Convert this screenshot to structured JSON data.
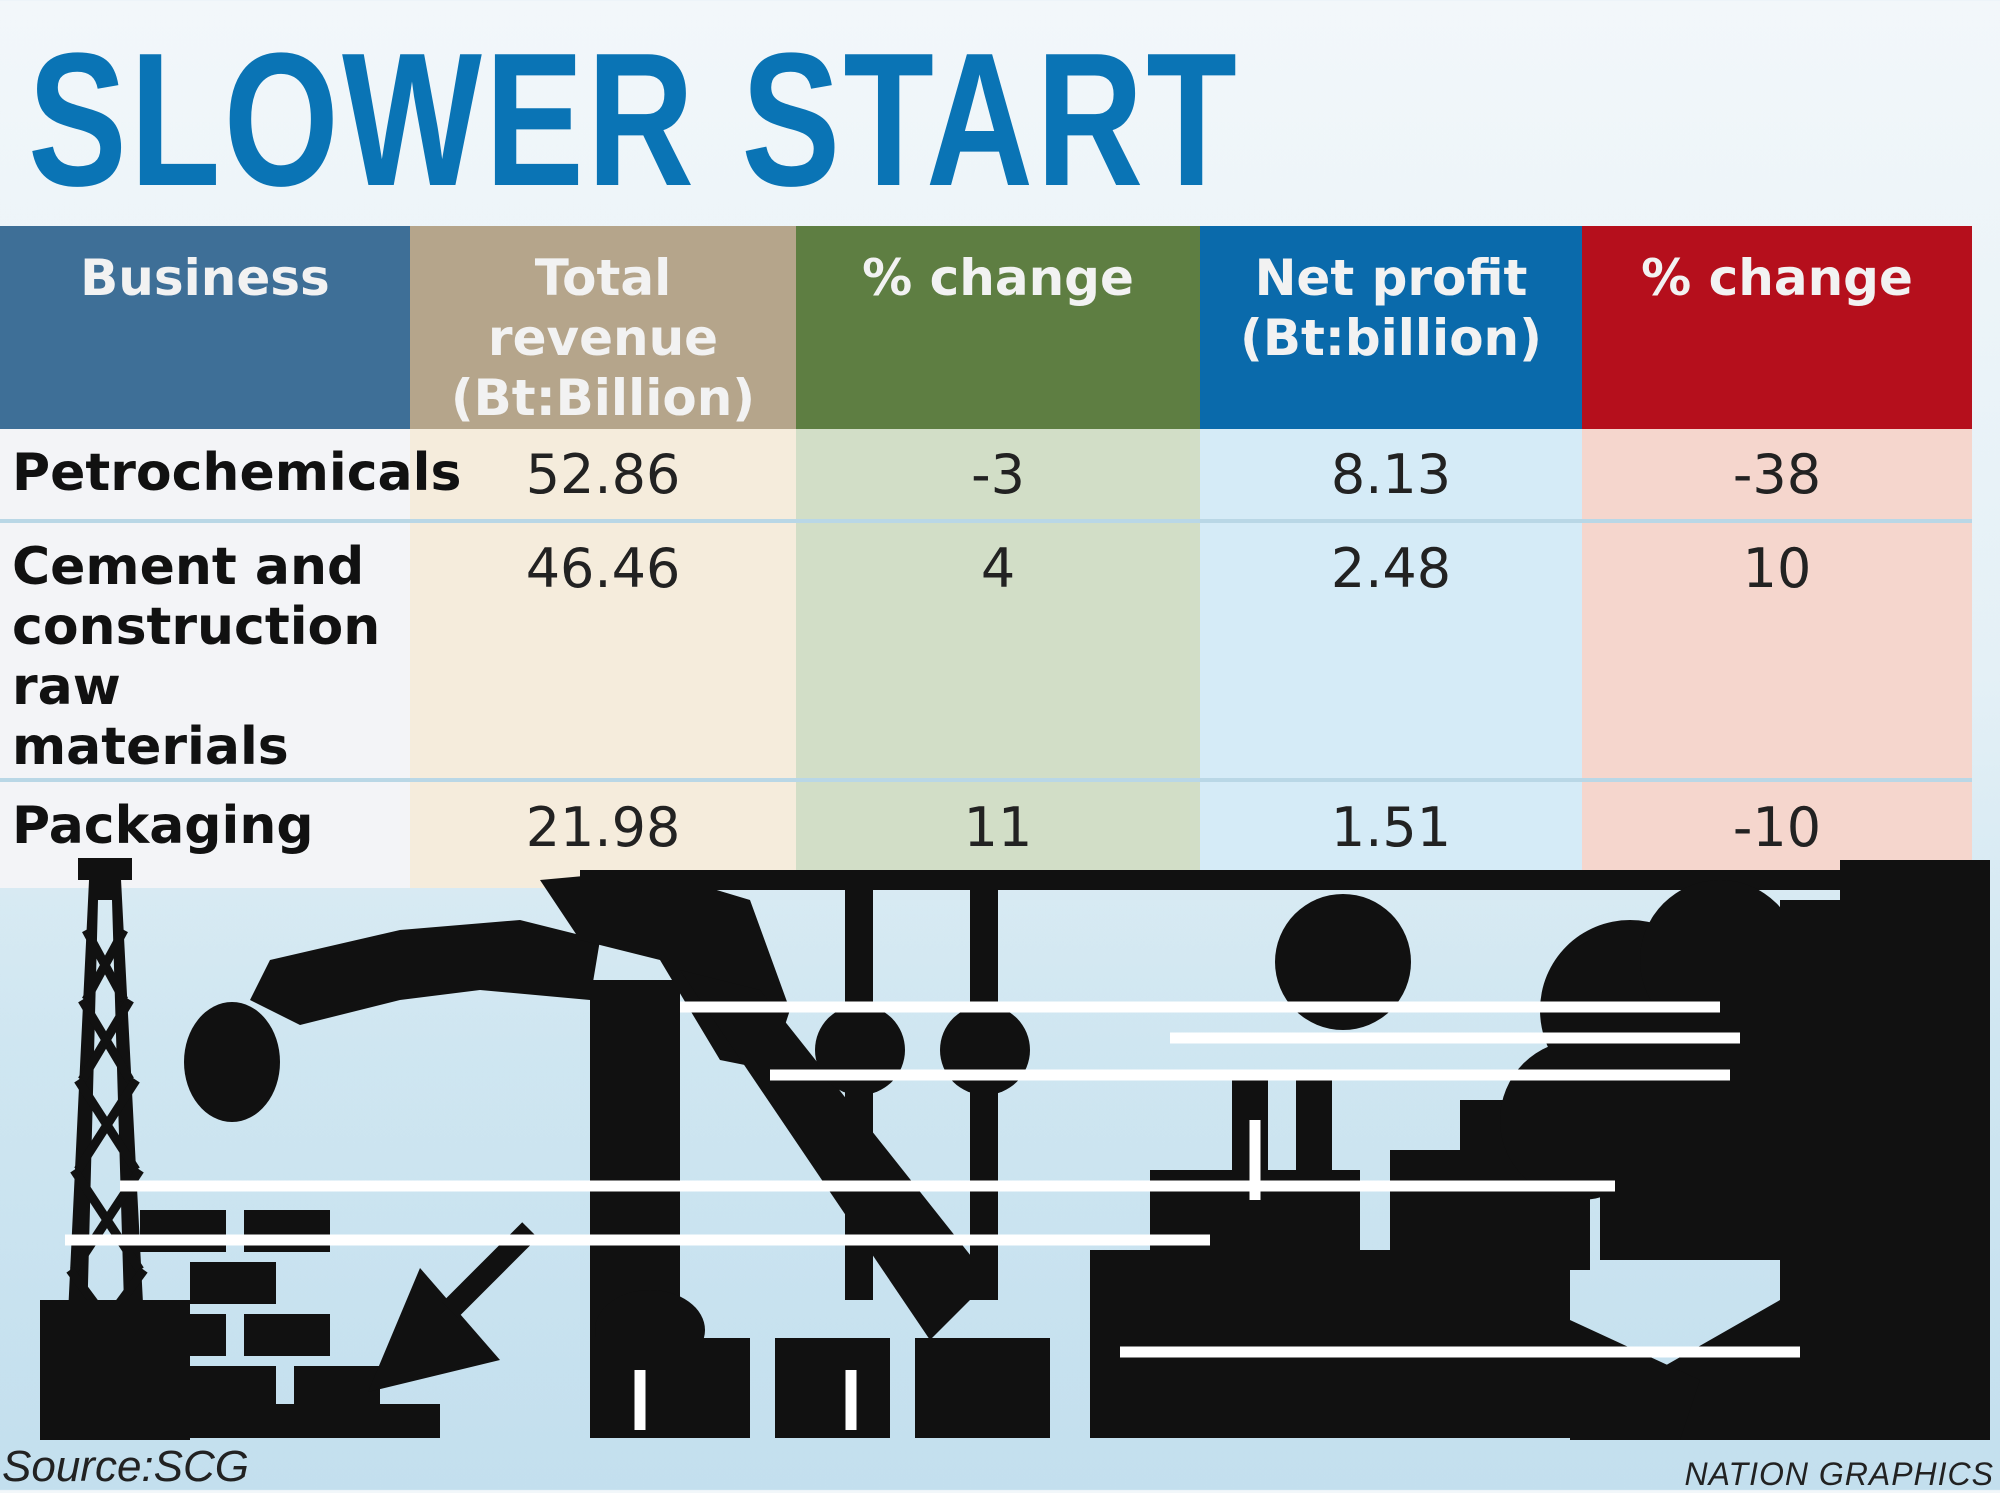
{
  "title": "SLOWER START",
  "chart_data": {
    "type": "table",
    "title": "SLOWER START",
    "columns": [
      "Business",
      "Total revenue (Bt:Billion)",
      "% change",
      "Net profit (Bt:billion)",
      "% change"
    ],
    "header_lines": [
      [
        "Business"
      ],
      [
        "Total revenue",
        "(Bt:Billion)"
      ],
      [
        "% change"
      ],
      [
        "Net profit",
        "(Bt:billion)"
      ],
      [
        "% change"
      ]
    ],
    "header_colors": [
      "#3e6f97",
      "#b5a58b",
      "#5e7e42",
      "#0a6aab",
      "#b50f1c"
    ],
    "rows": [
      {
        "label_lines": [
          "Petrochemicals"
        ],
        "label": "Petrochemicals",
        "revenue": "52.86",
        "revenue_change": "-3",
        "net_profit": "8.13",
        "profit_change": "-38"
      },
      {
        "label_lines": [
          "Cement and",
          "construction",
          "raw materials"
        ],
        "label": "Cement and construction raw materials",
        "revenue": "46.46",
        "revenue_change": "4",
        "net_profit": "2.48",
        "profit_change": "10"
      },
      {
        "label_lines": [
          "Packaging"
        ],
        "label": "Packaging",
        "revenue": "21.98",
        "revenue_change": "11",
        "net_profit": "1.51",
        "profit_change": "-10"
      }
    ]
  },
  "footer": {
    "source": "Source:SCG",
    "credit": "NATION GRAPHICS"
  },
  "colors": {
    "title": "#0a74b5",
    "silhouette": "#111111"
  }
}
